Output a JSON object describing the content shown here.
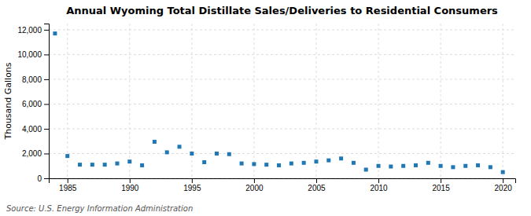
{
  "chart_data": {
    "type": "scatter",
    "title": "Annual Wyoming Total Distillate Sales/Deliveries to Residential Consumers",
    "ylabel": "Thousand Gallons",
    "source": "Source: U.S. Energy Information Administration",
    "marker": "square",
    "grid": true,
    "x": [
      1984,
      1985,
      1986,
      1987,
      1988,
      1989,
      1990,
      1991,
      1992,
      1993,
      1994,
      1995,
      1996,
      1997,
      1998,
      1999,
      2000,
      2001,
      2002,
      2003,
      2004,
      2005,
      2006,
      2007,
      2008,
      2009,
      2010,
      2011,
      2012,
      2013,
      2014,
      2015,
      2016,
      2017,
      2018,
      2019,
      2020
    ],
    "values": [
      11700,
      1800,
      1100,
      1100,
      1100,
      1200,
      1350,
      1050,
      2950,
      2100,
      2550,
      2000,
      1300,
      2000,
      1950,
      1200,
      1150,
      1100,
      1050,
      1200,
      1250,
      1350,
      1450,
      1600,
      1250,
      700,
      1000,
      950,
      1000,
      1050,
      1250,
      1000,
      900,
      1000,
      1050,
      900,
      500
    ],
    "xlim": [
      1983.5,
      2021
    ],
    "xticks": [
      1985,
      1990,
      1995,
      2000,
      2005,
      2010,
      2015,
      2020
    ],
    "ylim": [
      0,
      12500
    ],
    "yticks": [
      0,
      {
        "value": 2000,
        "label": "2,000"
      },
      {
        "value": 4000,
        "label": "4,000"
      },
      {
        "value": 6000,
        "label": "6,000"
      },
      {
        "value": 8000,
        "label": "8,000"
      },
      {
        "value": 10000,
        "label": "10,000"
      },
      {
        "value": 12000,
        "label": "12,000"
      }
    ]
  }
}
